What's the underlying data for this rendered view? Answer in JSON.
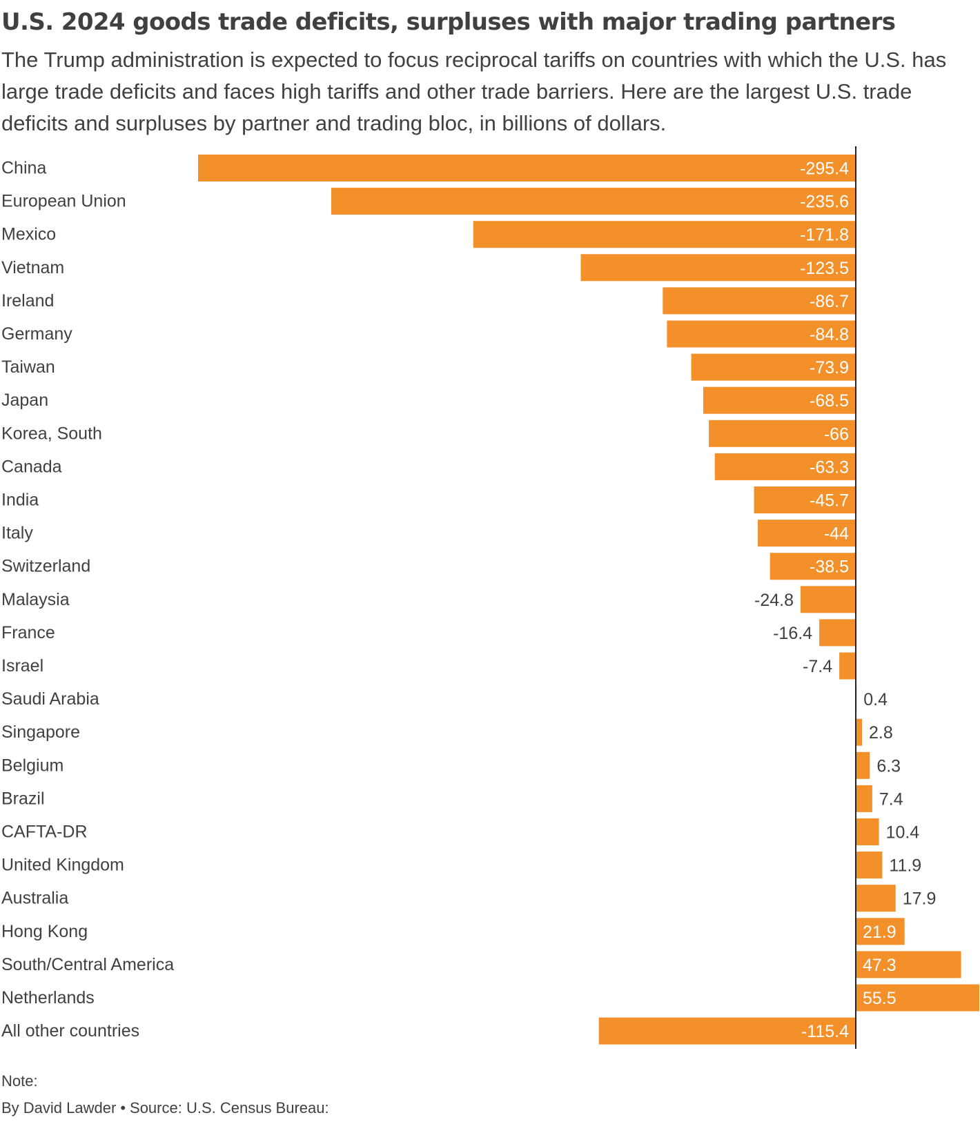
{
  "header": {
    "title": "U.S. 2024 goods trade deficits, surpluses with major trading partners",
    "subtitle": "The Trump administration is expected to focus reciprocal tariffs on countries with which the U.S. has large trade deficits and faces high tariffs and other trade barriers. Here are the largest U.S. trade deficits and surpluses by partner and trading bloc, in billions of dollars."
  },
  "colors": {
    "bar": "#F4902A",
    "axis": "#222222",
    "text": "#404040",
    "label_inside": "#ffffff"
  },
  "chart_data": {
    "type": "bar",
    "orientation": "horizontal",
    "title": "U.S. 2024 goods trade deficits, surpluses with major trading partners",
    "xlabel": "",
    "ylabel": "",
    "unit": "billions of dollars",
    "xlim": [
      -295.4,
      55.5
    ],
    "grid": false,
    "categories": [
      "China",
      "European Union",
      "Mexico",
      "Vietnam",
      "Ireland",
      "Germany",
      "Taiwan",
      "Japan",
      "Korea, South",
      "Canada",
      "India",
      "Italy",
      "Switzerland",
      "Malaysia",
      "France",
      "Israel",
      "Saudi Arabia",
      "Singapore",
      "Belgium",
      "Brazil",
      "CAFTA-DR",
      "United Kingdom",
      "Australia",
      "Hong Kong",
      "South/Central America",
      "Netherlands",
      "All other countries"
    ],
    "values": [
      -295.4,
      -235.6,
      -171.8,
      -123.5,
      -86.7,
      -84.8,
      -73.9,
      -68.5,
      -66,
      -63.3,
      -45.7,
      -44,
      -38.5,
      -24.8,
      -16.4,
      -7.4,
      0.4,
      2.8,
      6.3,
      7.4,
      10.4,
      11.9,
      17.9,
      21.9,
      47.3,
      55.5,
      -115.4
    ],
    "value_labels": [
      "-295.4",
      "-235.6",
      "-171.8",
      "-123.5",
      "-86.7",
      "-84.8",
      "-73.9",
      "-68.5",
      "-66",
      "-63.3",
      "-45.7",
      "-44",
      "-38.5",
      "-24.8",
      "-16.4",
      "-7.4",
      "0.4",
      "2.8",
      "6.3",
      "7.4",
      "10.4",
      "11.9",
      "17.9",
      "21.9",
      "47.3",
      "55.5",
      "-115.4"
    ]
  },
  "footer": {
    "note_label": "Note:",
    "byline": "By David Lawder",
    "separator": "•",
    "source": "Source: U.S. Census Bureau:"
  }
}
